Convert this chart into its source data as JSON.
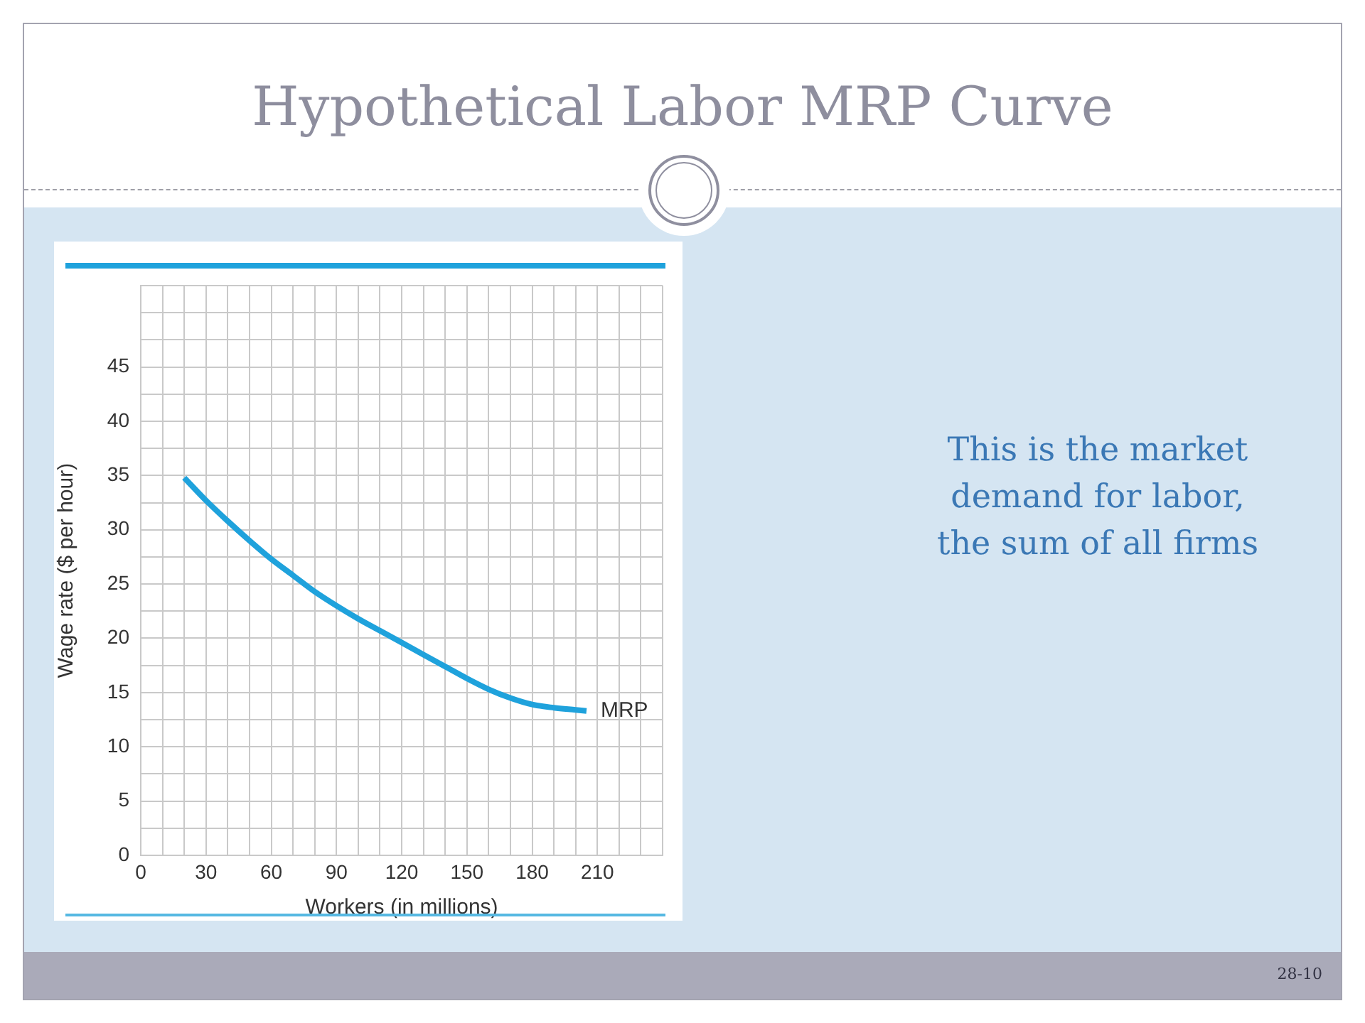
{
  "chart_data": {
    "type": "line",
    "title": "Hypothetical Labor MRP Curve",
    "xlabel": "Workers (in millions)",
    "ylabel": "Wage rate ($ per hour)",
    "x": [
      20,
      30,
      40,
      50,
      60,
      70,
      80,
      90,
      100,
      110,
      120,
      130,
      140,
      150,
      160,
      170,
      180,
      190,
      200,
      205
    ],
    "series": [
      {
        "name": "MRP",
        "color": "#1fa2dc",
        "values": [
          34.8,
          32.7,
          30.8,
          29.0,
          27.3,
          25.8,
          24.3,
          23.0,
          21.8,
          20.7,
          19.6,
          18.5,
          17.4,
          16.3,
          15.3,
          14.5,
          13.9,
          13.6,
          13.4,
          13.3
        ]
      }
    ],
    "xlim": [
      0,
      240
    ],
    "ylim": [
      0,
      52.5
    ],
    "xticks": [
      0,
      {
        "value": 10,
        "label": null
      },
      {
        "value": 20,
        "label": null
      },
      30,
      {
        "value": 40,
        "label": null
      },
      {
        "value": 50,
        "label": null
      },
      60,
      {
        "value": 70,
        "label": null
      },
      {
        "value": 80,
        "label": null
      },
      90,
      {
        "value": 100,
        "label": null
      },
      {
        "value": 110,
        "label": null
      },
      120,
      {
        "value": 130,
        "label": null
      },
      {
        "value": 140,
        "label": null
      },
      150,
      {
        "value": 160,
        "label": null
      },
      {
        "value": 170,
        "label": null
      },
      180,
      {
        "value": 190,
        "label": null
      },
      {
        "value": 200,
        "label": null
      },
      210,
      {
        "value": 220,
        "label": null
      },
      {
        "value": 230,
        "label": null
      },
      {
        "value": 240,
        "label": null
      }
    ],
    "yticks": [
      0,
      {
        "value": 2.5,
        "label": null
      },
      5,
      {
        "value": 7.5,
        "label": null
      },
      10,
      {
        "value": 12.5,
        "label": null
      },
      15,
      {
        "value": 17.5,
        "label": null
      },
      20,
      {
        "value": 22.5,
        "label": null
      },
      25,
      {
        "value": 27.5,
        "label": null
      },
      30,
      {
        "value": 32.5,
        "label": null
      },
      35,
      {
        "value": 37.5,
        "label": null
      },
      40,
      {
        "value": 42.5,
        "label": null
      },
      45,
      {
        "value": 47.5,
        "label": null
      },
      {
        "value": 50,
        "label": null
      },
      {
        "value": 52.5,
        "label": null
      }
    ],
    "grid": true,
    "annotations": [
      "This is the market demand for labor, the sum of all firms",
      "28-10"
    ]
  }
}
